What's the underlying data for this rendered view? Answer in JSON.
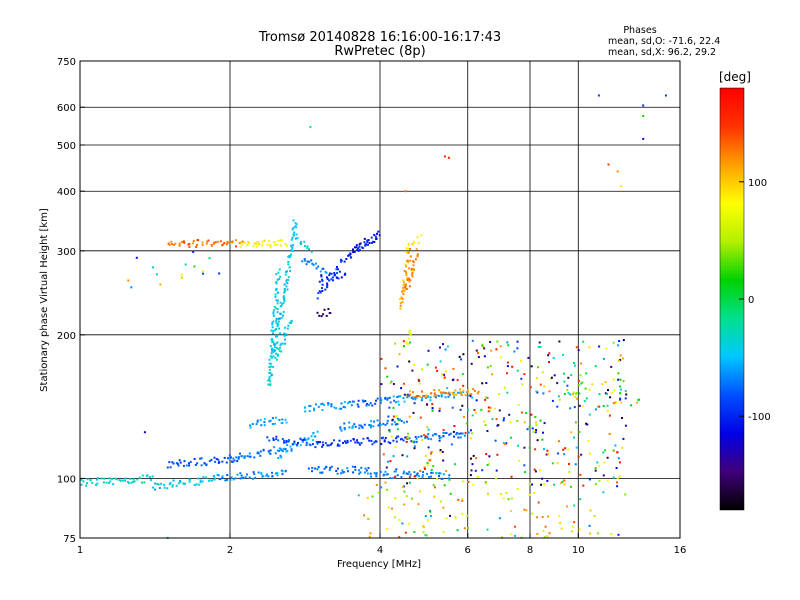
{
  "chart_data": {
    "type": "scatter",
    "title": "Tromsø 20140828  16:16:00-16:17:43",
    "subtitle": "RwPretec (8p)",
    "stats": {
      "heading": "Phases",
      "line_o": "mean, sd,O: -71.6, 22.4",
      "line_x": "mean, sd,X:  96.2, 29.2"
    },
    "xlabel": "Frequency [MHz]",
    "ylabel": "Stationary phase Virtual Height [km]",
    "x_scale": "log",
    "y_scale": "log",
    "xlim": [
      1,
      16
    ],
    "ylim": [
      75,
      750
    ],
    "x_ticks": [
      {
        "value": 1,
        "label": "1"
      },
      {
        "value": 2,
        "label": "2"
      },
      {
        "value": 4,
        "label": "4"
      },
      {
        "value": 6,
        "label": "6"
      },
      {
        "value": 8,
        "label": "8"
      },
      {
        "value": 10,
        "label": "10"
      },
      {
        "value": 16,
        "label": "16"
      }
    ],
    "y_ticks": [
      {
        "value": 75,
        "label": "75"
      },
      {
        "value": 100,
        "label": "100"
      },
      {
        "value": 200,
        "label": "200"
      },
      {
        "value": 300,
        "label": "300"
      },
      {
        "value": 400,
        "label": "400"
      },
      {
        "value": 500,
        "label": "500"
      },
      {
        "value": 600,
        "label": "600"
      },
      {
        "value": 750,
        "label": "750"
      }
    ],
    "x_gridlines": [
      2,
      4,
      6,
      8,
      10
    ],
    "y_gridlines": [
      100,
      200,
      300,
      400,
      500,
      600
    ],
    "grid": true,
    "colorbar": {
      "unit": "[deg]",
      "range": [
        -180,
        180
      ],
      "ticks": [
        {
          "value": 100,
          "label": "100"
        },
        {
          "value": 0,
          "label": "0"
        },
        {
          "value": -100,
          "label": "-100"
        }
      ],
      "colormap": [
        "#000000",
        "#40007a",
        "#0000e6",
        "#0050ff",
        "#00c8ff",
        "#00e08c",
        "#00d200",
        "#b4f000",
        "#ffff00",
        "#ffa000",
        "#ff3200",
        "#ff0000"
      ]
    },
    "traces": [
      {
        "x": [
          1.0,
          1.4
        ],
        "h": [
          98,
          100
        ],
        "phase": -35
      },
      {
        "x": [
          1.4,
          1.9
        ],
        "h": [
          96,
          100
        ],
        "phase": -45
      },
      {
        "x": [
          1.9,
          2.6
        ],
        "h": [
          100,
          103
        ],
        "phase": -65
      },
      {
        "x": [
          1.5,
          2.1
        ],
        "h": [
          107,
          110
        ],
        "phase": -80
      },
      {
        "x": [
          2.0,
          2.6
        ],
        "h": [
          110,
          116
        ],
        "phase": -70
      },
      {
        "x": [
          2.5,
          3.0
        ],
        "h": [
          112,
          124
        ],
        "phase": -55
      },
      {
        "x": [
          2.9,
          3.8
        ],
        "h": [
          104,
          104
        ],
        "phase": -75
      },
      {
        "x": [
          3.8,
          5.5
        ],
        "h": [
          102,
          101
        ],
        "phase": -70
      },
      {
        "x": [
          2.4,
          3.0
        ],
        "h": [
          122,
          118
        ],
        "phase": -85
      },
      {
        "x": [
          3.0,
          4.6
        ],
        "h": [
          118,
          121
        ],
        "phase": -95
      },
      {
        "x": [
          4.6,
          6.0
        ],
        "h": [
          121,
          124
        ],
        "phase": -75
      },
      {
        "x": [
          2.8,
          3.5
        ],
        "h": [
          140,
          143
        ],
        "phase": -60
      },
      {
        "x": [
          3.5,
          4.3
        ],
        "h": [
          143,
          146
        ],
        "phase": -80
      },
      {
        "x": [
          4.3,
          6.0
        ],
        "h": [
          146,
          150
        ],
        "phase": -60
      },
      {
        "x": [
          4.5,
          6.3
        ],
        "h": [
          150,
          152
        ],
        "phase": 120
      },
      {
        "x": [
          2.2,
          2.6
        ],
        "h": [
          130,
          133
        ],
        "phase": -60
      },
      {
        "x": [
          3.3,
          4.5
        ],
        "h": [
          128,
          132
        ],
        "phase": -70
      },
      {
        "x": [
          2.4,
          2.5
        ],
        "h": [
          155,
          270
        ],
        "phase": -40
      },
      {
        "x": [
          2.45,
          2.55
        ],
        "h": [
          180,
          230
        ],
        "phase": -45
      },
      {
        "x": [
          2.5,
          2.65
        ],
        "h": [
          180,
          215
        ],
        "phase": -40
      },
      {
        "x": [
          2.55,
          2.7
        ],
        "h": [
          230,
          345
        ],
        "phase": -45
      },
      {
        "x": [
          2.7,
          2.9
        ],
        "h": [
          320,
          300
        ],
        "phase": -40
      },
      {
        "x": [
          2.8,
          3.1
        ],
        "h": [
          290,
          270
        ],
        "phase": -70
      },
      {
        "x": [
          3.0,
          3.4
        ],
        "h": [
          262,
          268
        ],
        "phase": -105
      },
      {
        "x": [
          3.3,
          3.9
        ],
        "h": [
          280,
          320
        ],
        "phase": -100
      },
      {
        "x": [
          3.5,
          4.0
        ],
        "h": [
          300,
          325
        ],
        "phase": -110
      },
      {
        "x": [
          3.0,
          3.3
        ],
        "h": [
          240,
          275
        ],
        "phase": -90
      },
      {
        "x": [
          3.0,
          3.2
        ],
        "h": [
          220,
          226
        ],
        "phase": -150
      },
      {
        "x": [
          1.5,
          2.1
        ],
        "h": [
          310,
          312
        ],
        "phase": 130
      },
      {
        "x": [
          2.1,
          2.6
        ],
        "h": [
          308,
          312
        ],
        "phase": 85
      },
      {
        "x": [
          4.4,
          4.6
        ],
        "h": [
          230,
          300
        ],
        "phase": 110
      },
      {
        "x": [
          4.5,
          4.75
        ],
        "h": [
          245,
          300
        ],
        "phase": 120
      },
      {
        "x": [
          4.5,
          4.8
        ],
        "h": [
          300,
          320
        ],
        "phase": 80
      },
      {
        "x": [
          4.5,
          4.6
        ],
        "h": [
          190,
          205
        ],
        "phase": 80
      }
    ],
    "scatter_regions": [
      {
        "x": [
          4.0,
          12.5
        ],
        "h": [
          95,
          195
        ],
        "phase": [
          -180,
          180
        ],
        "count": 420
      },
      {
        "x": [
          3.6,
          10.0
        ],
        "h": [
          75,
          100
        ],
        "phase": [
          30,
          150
        ],
        "count": 75
      },
      {
        "x": [
          3.6,
          13.0
        ],
        "h": [
          75,
          95
        ],
        "phase": [
          -130,
          150
        ],
        "count": 40
      },
      {
        "x": [
          9.0,
          13.5
        ],
        "h": [
          140,
          160
        ],
        "phase": [
          -40,
          130
        ],
        "count": 30
      },
      {
        "x": [
          1.2,
          2.2
        ],
        "h": [
          250,
          300
        ],
        "phase": [
          -120,
          140
        ],
        "count": 12
      }
    ],
    "points": [
      {
        "x": 2.9,
        "h": 545,
        "phase": -20
      },
      {
        "x": 11.0,
        "h": 635,
        "phase": -90
      },
      {
        "x": 13.5,
        "h": 605,
        "phase": -100
      },
      {
        "x": 13.5,
        "h": 575,
        "phase": 20
      },
      {
        "x": 13.5,
        "h": 515,
        "phase": -110
      },
      {
        "x": 15.0,
        "h": 635,
        "phase": -90
      },
      {
        "x": 5.4,
        "h": 473,
        "phase": 160
      },
      {
        "x": 5.5,
        "h": 470,
        "phase": 160
      },
      {
        "x": 11.5,
        "h": 455,
        "phase": 150
      },
      {
        "x": 12.0,
        "h": 440,
        "phase": 120
      },
      {
        "x": 12.2,
        "h": 410,
        "phase": 90
      },
      {
        "x": 4.5,
        "h": 400,
        "phase": 130
      },
      {
        "x": 1.5,
        "h": 75,
        "phase": 0
      },
      {
        "x": 1.25,
        "h": 260,
        "phase": 120
      },
      {
        "x": 1.3,
        "h": 290,
        "phase": -110
      },
      {
        "x": 1.35,
        "h": 125,
        "phase": -120
      },
      {
        "x": 1.45,
        "h": 255,
        "phase": 110
      }
    ]
  }
}
